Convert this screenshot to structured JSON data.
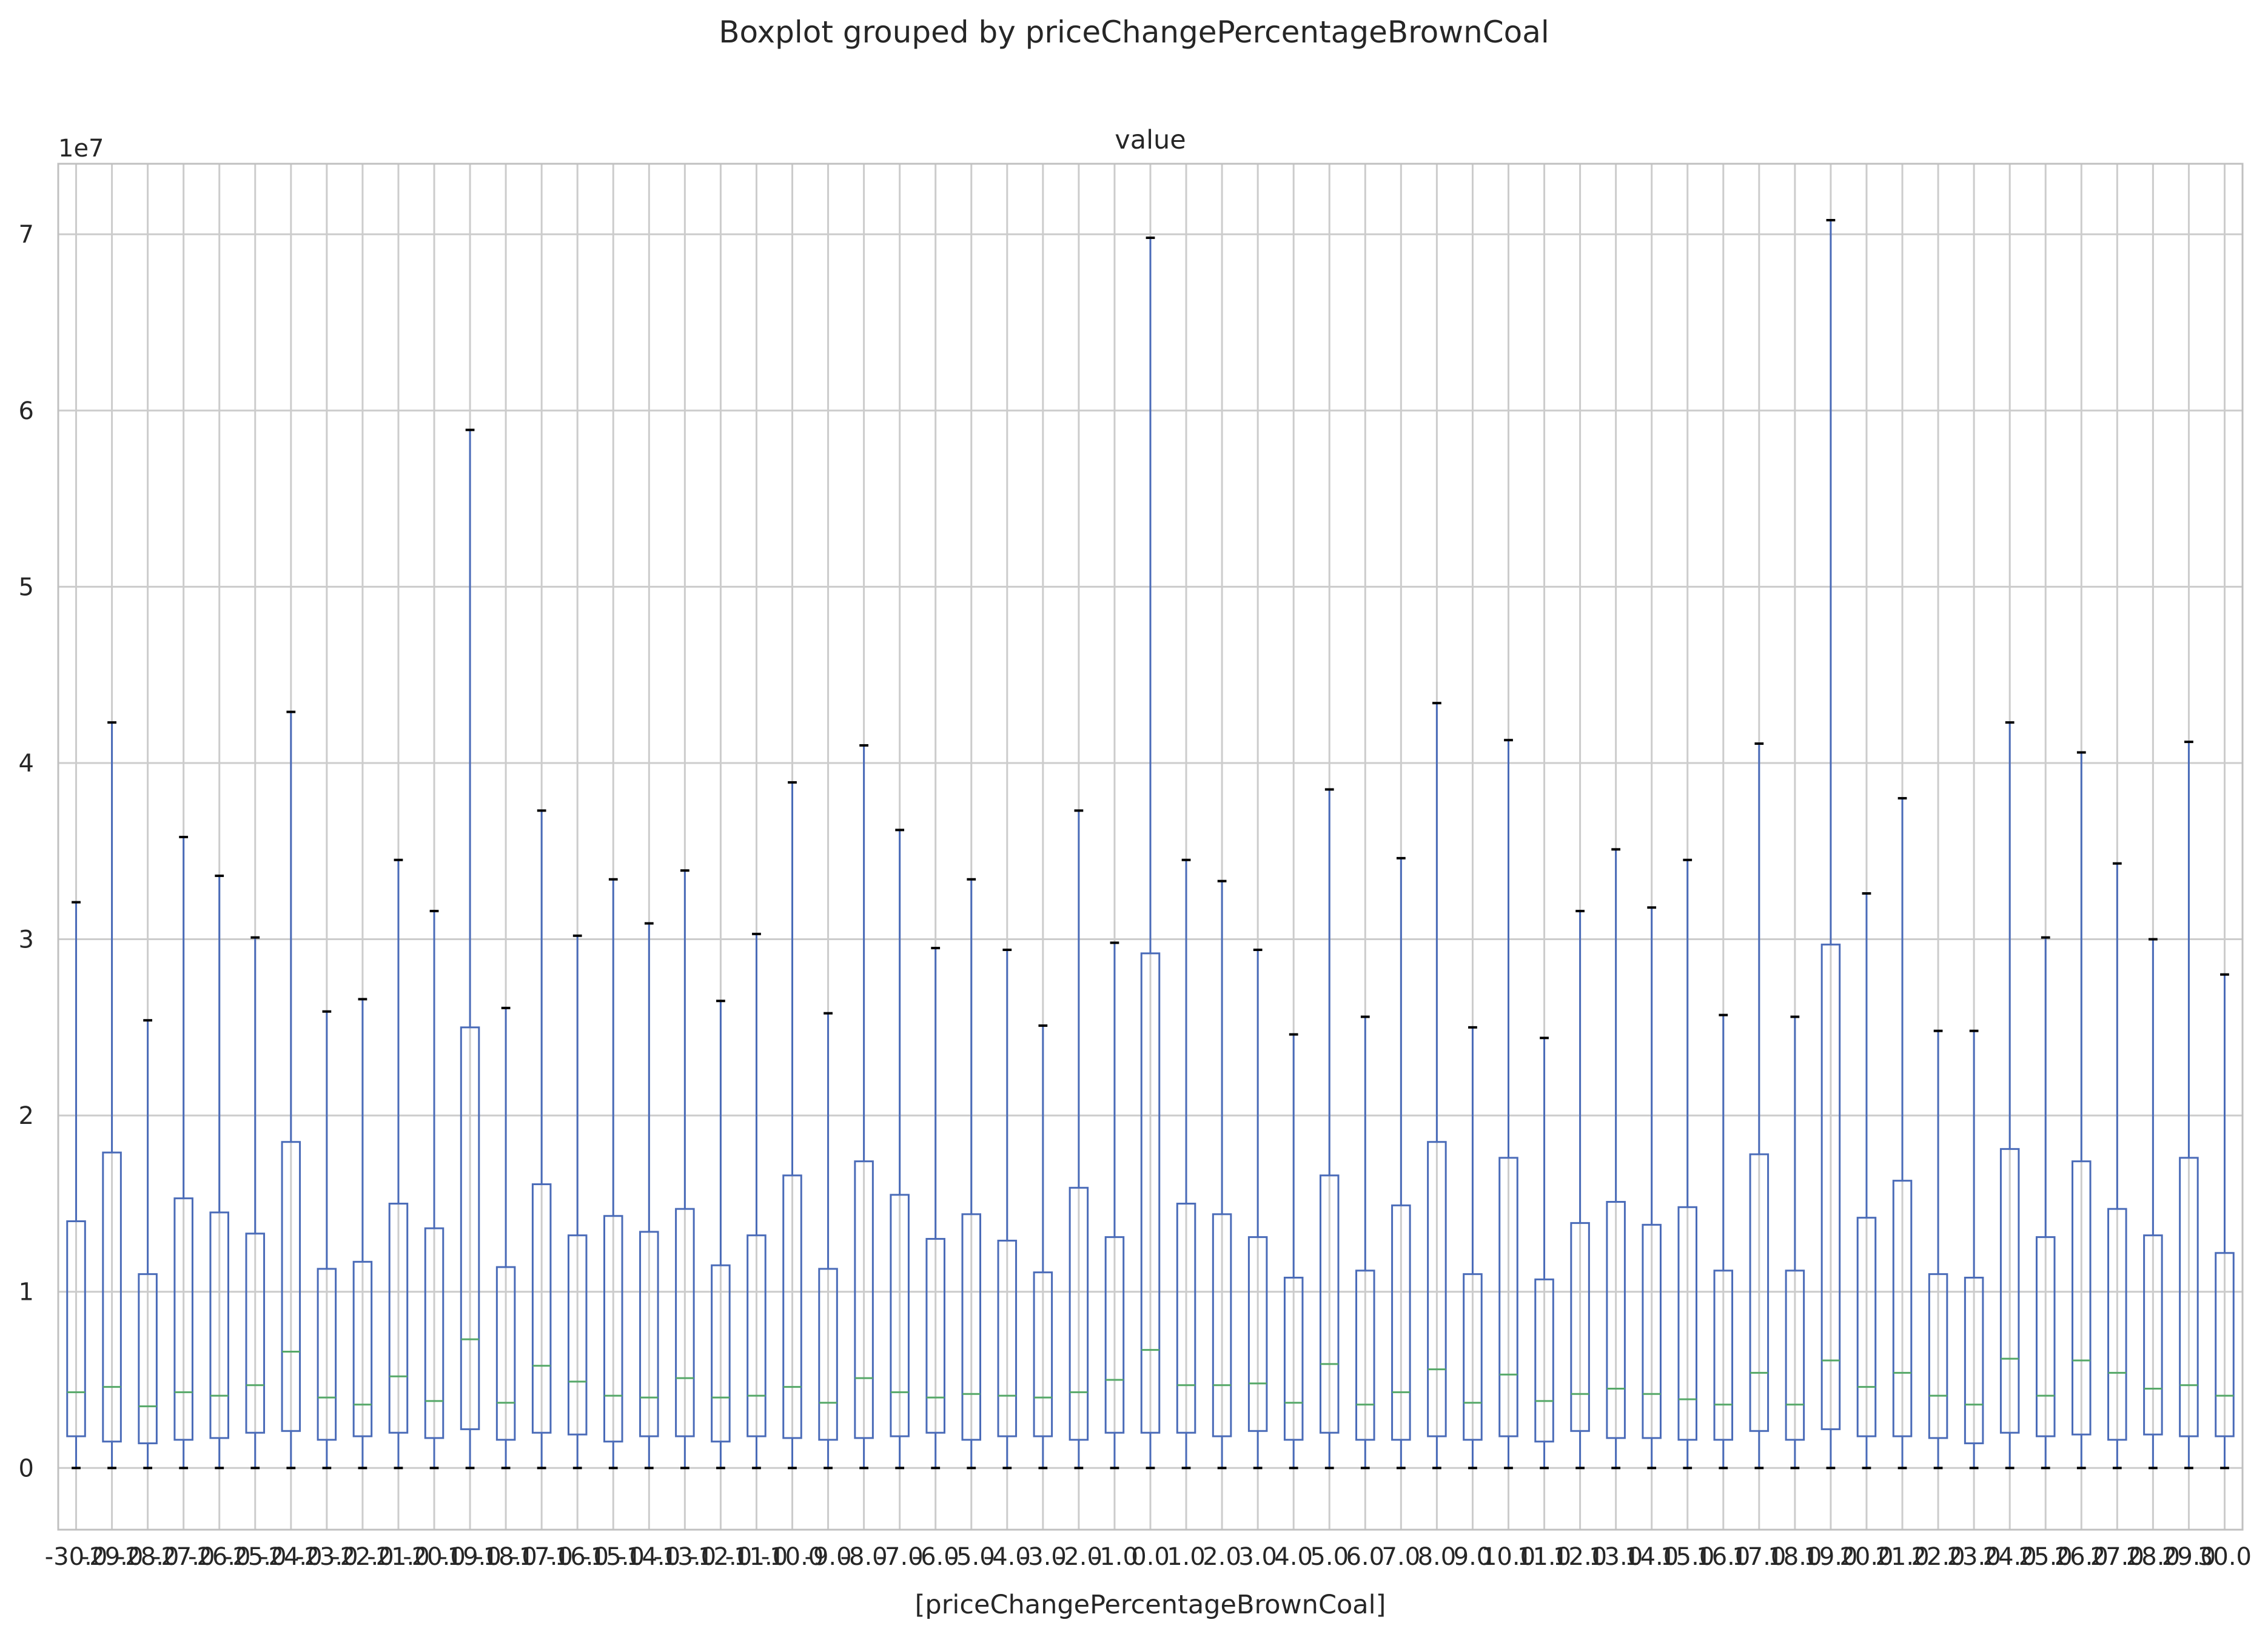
{
  "chart_data": {
    "type": "boxplot",
    "suptitle": "Boxplot grouped by priceChangePercentageBrownCoal",
    "title": "value",
    "xlabel": "[priceChangePercentageBrownCoal]",
    "ylabel": "",
    "y_offset_label": "1e7",
    "y_scale": 10000000,
    "ylim": [
      -3500000,
      74000000
    ],
    "y_ticks": [
      0,
      10000000,
      20000000,
      30000000,
      40000000,
      50000000,
      60000000,
      70000000
    ],
    "y_tick_labels": [
      "0",
      "1",
      "2",
      "3",
      "4",
      "5",
      "6",
      "7"
    ],
    "grid": true,
    "colors": {
      "box": "#4a6bb8",
      "median": "#55a868",
      "cap": "#000000",
      "grid": "#cccccc",
      "frame": "#c0c0c0"
    },
    "categories": [
      "-30.0",
      "-29.0",
      "-28.0",
      "-27.0",
      "-26.0",
      "-25.0",
      "-24.0",
      "-23.0",
      "-22.0",
      "-21.0",
      "-20.0",
      "-19.0",
      "-18.0",
      "-17.0",
      "-16.0",
      "-15.0",
      "-14.0",
      "-13.0",
      "-12.0",
      "-11.0",
      "-10.0",
      "-9.0",
      "-8.0",
      "-7.0",
      "-6.0",
      "-5.0",
      "-4.0",
      "-3.0",
      "-2.0",
      "-1.0",
      "0.0",
      "1.0",
      "2.0",
      "3.0",
      "4.0",
      "5.0",
      "6.0",
      "7.0",
      "8.0",
      "9.0",
      "10.0",
      "11.0",
      "12.0",
      "13.0",
      "14.0",
      "15.0",
      "16.0",
      "17.0",
      "18.0",
      "19.0",
      "20.0",
      "21.0",
      "22.0",
      "23.0",
      "24.0",
      "25.0",
      "26.0",
      "27.0",
      "28.0",
      "29.0",
      "30.0"
    ],
    "boxes": [
      {
        "min": 0,
        "q1": 1.8,
        "median": 4.3,
        "q3": 14.0,
        "max": 32.1
      },
      {
        "min": 0,
        "q1": 1.5,
        "median": 4.6,
        "q3": 17.9,
        "max": 42.3
      },
      {
        "min": 0,
        "q1": 1.4,
        "median": 3.5,
        "q3": 11.0,
        "max": 25.4
      },
      {
        "min": 0,
        "q1": 1.6,
        "median": 4.3,
        "q3": 15.3,
        "max": 35.8
      },
      {
        "min": 0,
        "q1": 1.7,
        "median": 4.1,
        "q3": 14.5,
        "max": 33.6
      },
      {
        "min": 0,
        "q1": 2.0,
        "median": 4.7,
        "q3": 13.3,
        "max": 30.1
      },
      {
        "min": 0,
        "q1": 2.1,
        "median": 6.6,
        "q3": 18.5,
        "max": 42.9
      },
      {
        "min": 0,
        "q1": 1.6,
        "median": 4.0,
        "q3": 11.3,
        "max": 25.9
      },
      {
        "min": 0,
        "q1": 1.8,
        "median": 3.6,
        "q3": 11.7,
        "max": 26.6
      },
      {
        "min": 0,
        "q1": 2.0,
        "median": 5.2,
        "q3": 15.0,
        "max": 34.5
      },
      {
        "min": 0,
        "q1": 1.7,
        "median": 3.8,
        "q3": 13.6,
        "max": 31.6
      },
      {
        "min": 0,
        "q1": 2.2,
        "median": 7.3,
        "q3": 25.0,
        "max": 58.9
      },
      {
        "min": 0,
        "q1": 1.6,
        "median": 3.7,
        "q3": 11.4,
        "max": 26.1
      },
      {
        "min": 0,
        "q1": 2.0,
        "median": 5.8,
        "q3": 16.1,
        "max": 37.3
      },
      {
        "min": 0,
        "q1": 1.9,
        "median": 4.9,
        "q3": 13.2,
        "max": 30.2
      },
      {
        "min": 0,
        "q1": 1.5,
        "median": 4.1,
        "q3": 14.3,
        "max": 33.4
      },
      {
        "min": 0,
        "q1": 1.8,
        "median": 4.0,
        "q3": 13.4,
        "max": 30.9
      },
      {
        "min": 0,
        "q1": 1.8,
        "median": 5.1,
        "q3": 14.7,
        "max": 33.9
      },
      {
        "min": 0,
        "q1": 1.5,
        "median": 4.0,
        "q3": 11.5,
        "max": 26.5
      },
      {
        "min": 0,
        "q1": 1.8,
        "median": 4.1,
        "q3": 13.2,
        "max": 30.3
      },
      {
        "min": 0,
        "q1": 1.7,
        "median": 4.6,
        "q3": 16.6,
        "max": 38.9
      },
      {
        "min": 0,
        "q1": 1.6,
        "median": 3.7,
        "q3": 11.3,
        "max": 25.8
      },
      {
        "min": 0,
        "q1": 1.7,
        "median": 5.1,
        "q3": 17.4,
        "max": 41.0
      },
      {
        "min": 0,
        "q1": 1.8,
        "median": 4.3,
        "q3": 15.5,
        "max": 36.2
      },
      {
        "min": 0,
        "q1": 2.0,
        "median": 4.0,
        "q3": 13.0,
        "max": 29.5
      },
      {
        "min": 0,
        "q1": 1.6,
        "median": 4.2,
        "q3": 14.4,
        "max": 33.4
      },
      {
        "min": 0,
        "q1": 1.8,
        "median": 4.1,
        "q3": 12.9,
        "max": 29.4
      },
      {
        "min": 0,
        "q1": 1.8,
        "median": 4.0,
        "q3": 11.1,
        "max": 25.1
      },
      {
        "min": 0,
        "q1": 1.6,
        "median": 4.3,
        "q3": 15.9,
        "max": 37.3
      },
      {
        "min": 0,
        "q1": 2.0,
        "median": 5.0,
        "q3": 13.1,
        "max": 29.8
      },
      {
        "min": 0,
        "q1": 2.0,
        "median": 6.7,
        "q3": 29.2,
        "max": 69.8
      },
      {
        "min": 0,
        "q1": 2.0,
        "median": 4.7,
        "q3": 15.0,
        "max": 34.5
      },
      {
        "min": 0,
        "q1": 1.8,
        "median": 4.7,
        "q3": 14.4,
        "max": 33.3
      },
      {
        "min": 0,
        "q1": 2.1,
        "median": 4.8,
        "q3": 13.1,
        "max": 29.4
      },
      {
        "min": 0,
        "q1": 1.6,
        "median": 3.7,
        "q3": 10.8,
        "max": 24.6
      },
      {
        "min": 0,
        "q1": 2.0,
        "median": 5.9,
        "q3": 16.6,
        "max": 38.5
      },
      {
        "min": 0,
        "q1": 1.6,
        "median": 3.6,
        "q3": 11.2,
        "max": 25.6
      },
      {
        "min": 0,
        "q1": 1.6,
        "median": 4.3,
        "q3": 14.9,
        "max": 34.6
      },
      {
        "min": 0,
        "q1": 1.8,
        "median": 5.6,
        "q3": 18.5,
        "max": 43.4
      },
      {
        "min": 0,
        "q1": 1.6,
        "median": 3.7,
        "q3": 11.0,
        "max": 25.0
      },
      {
        "min": 0,
        "q1": 1.8,
        "median": 5.3,
        "q3": 17.6,
        "max": 41.3
      },
      {
        "min": 0,
        "q1": 1.5,
        "median": 3.8,
        "q3": 10.7,
        "max": 24.4
      },
      {
        "min": 0,
        "q1": 2.1,
        "median": 4.2,
        "q3": 13.9,
        "max": 31.6
      },
      {
        "min": 0,
        "q1": 1.7,
        "median": 4.5,
        "q3": 15.1,
        "max": 35.1
      },
      {
        "min": 0,
        "q1": 1.7,
        "median": 4.2,
        "q3": 13.8,
        "max": 31.8
      },
      {
        "min": 0,
        "q1": 1.6,
        "median": 3.9,
        "q3": 14.8,
        "max": 34.5
      },
      {
        "min": 0,
        "q1": 1.6,
        "median": 3.6,
        "q3": 11.2,
        "max": 25.7
      },
      {
        "min": 0,
        "q1": 2.1,
        "median": 5.4,
        "q3": 17.8,
        "max": 41.1
      },
      {
        "min": 0,
        "q1": 1.6,
        "median": 3.6,
        "q3": 11.2,
        "max": 25.6
      },
      {
        "min": 0,
        "q1": 2.2,
        "median": 6.1,
        "q3": 29.7,
        "max": 70.8
      },
      {
        "min": 0,
        "q1": 1.8,
        "median": 4.6,
        "q3": 14.2,
        "max": 32.6
      },
      {
        "min": 0,
        "q1": 1.8,
        "median": 5.4,
        "q3": 16.3,
        "max": 38.0
      },
      {
        "min": 0,
        "q1": 1.7,
        "median": 4.1,
        "q3": 11.0,
        "max": 24.8
      },
      {
        "min": 0,
        "q1": 1.4,
        "median": 3.6,
        "q3": 10.8,
        "max": 24.8
      },
      {
        "min": 0,
        "q1": 2.0,
        "median": 6.2,
        "q3": 18.1,
        "max": 42.3
      },
      {
        "min": 0,
        "q1": 1.8,
        "median": 4.1,
        "q3": 13.1,
        "max": 30.1
      },
      {
        "min": 0,
        "q1": 1.9,
        "median": 6.1,
        "q3": 17.4,
        "max": 40.6
      },
      {
        "min": 0,
        "q1": 1.6,
        "median": 5.4,
        "q3": 14.7,
        "max": 34.3
      },
      {
        "min": 0,
        "q1": 1.9,
        "median": 4.5,
        "q3": 13.2,
        "max": 30.0
      },
      {
        "min": 0,
        "q1": 1.8,
        "median": 4.7,
        "q3": 17.6,
        "max": 41.2
      },
      {
        "min": 0,
        "q1": 1.8,
        "median": 4.1,
        "q3": 12.2,
        "max": 28.0
      }
    ],
    "box_values_unit": "millions"
  }
}
